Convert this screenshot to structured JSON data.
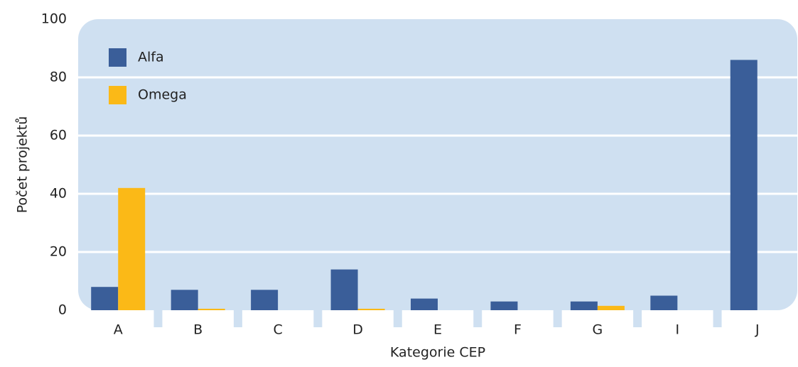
{
  "chart_data": {
    "type": "bar",
    "xlabel": "Kategorie CEP",
    "ylabel": "Počet projektů",
    "categories": [
      "A",
      "B",
      "C",
      "D",
      "E",
      "F",
      "G",
      "I",
      "J"
    ],
    "series": [
      {
        "name": "Alfa",
        "color": "#3a5e99",
        "values": [
          8,
          7,
          7,
          14,
          4,
          3,
          3,
          5,
          86
        ]
      },
      {
        "name": "Omega",
        "color": "#fbb917",
        "values": [
          42,
          0.5,
          0,
          0.5,
          0,
          0,
          1.5,
          0,
          0
        ]
      }
    ],
    "ylim": [
      0,
      100
    ],
    "yticks": [
      0,
      20,
      40,
      60,
      80,
      100
    ],
    "grid": true,
    "legend": "upper left"
  }
}
